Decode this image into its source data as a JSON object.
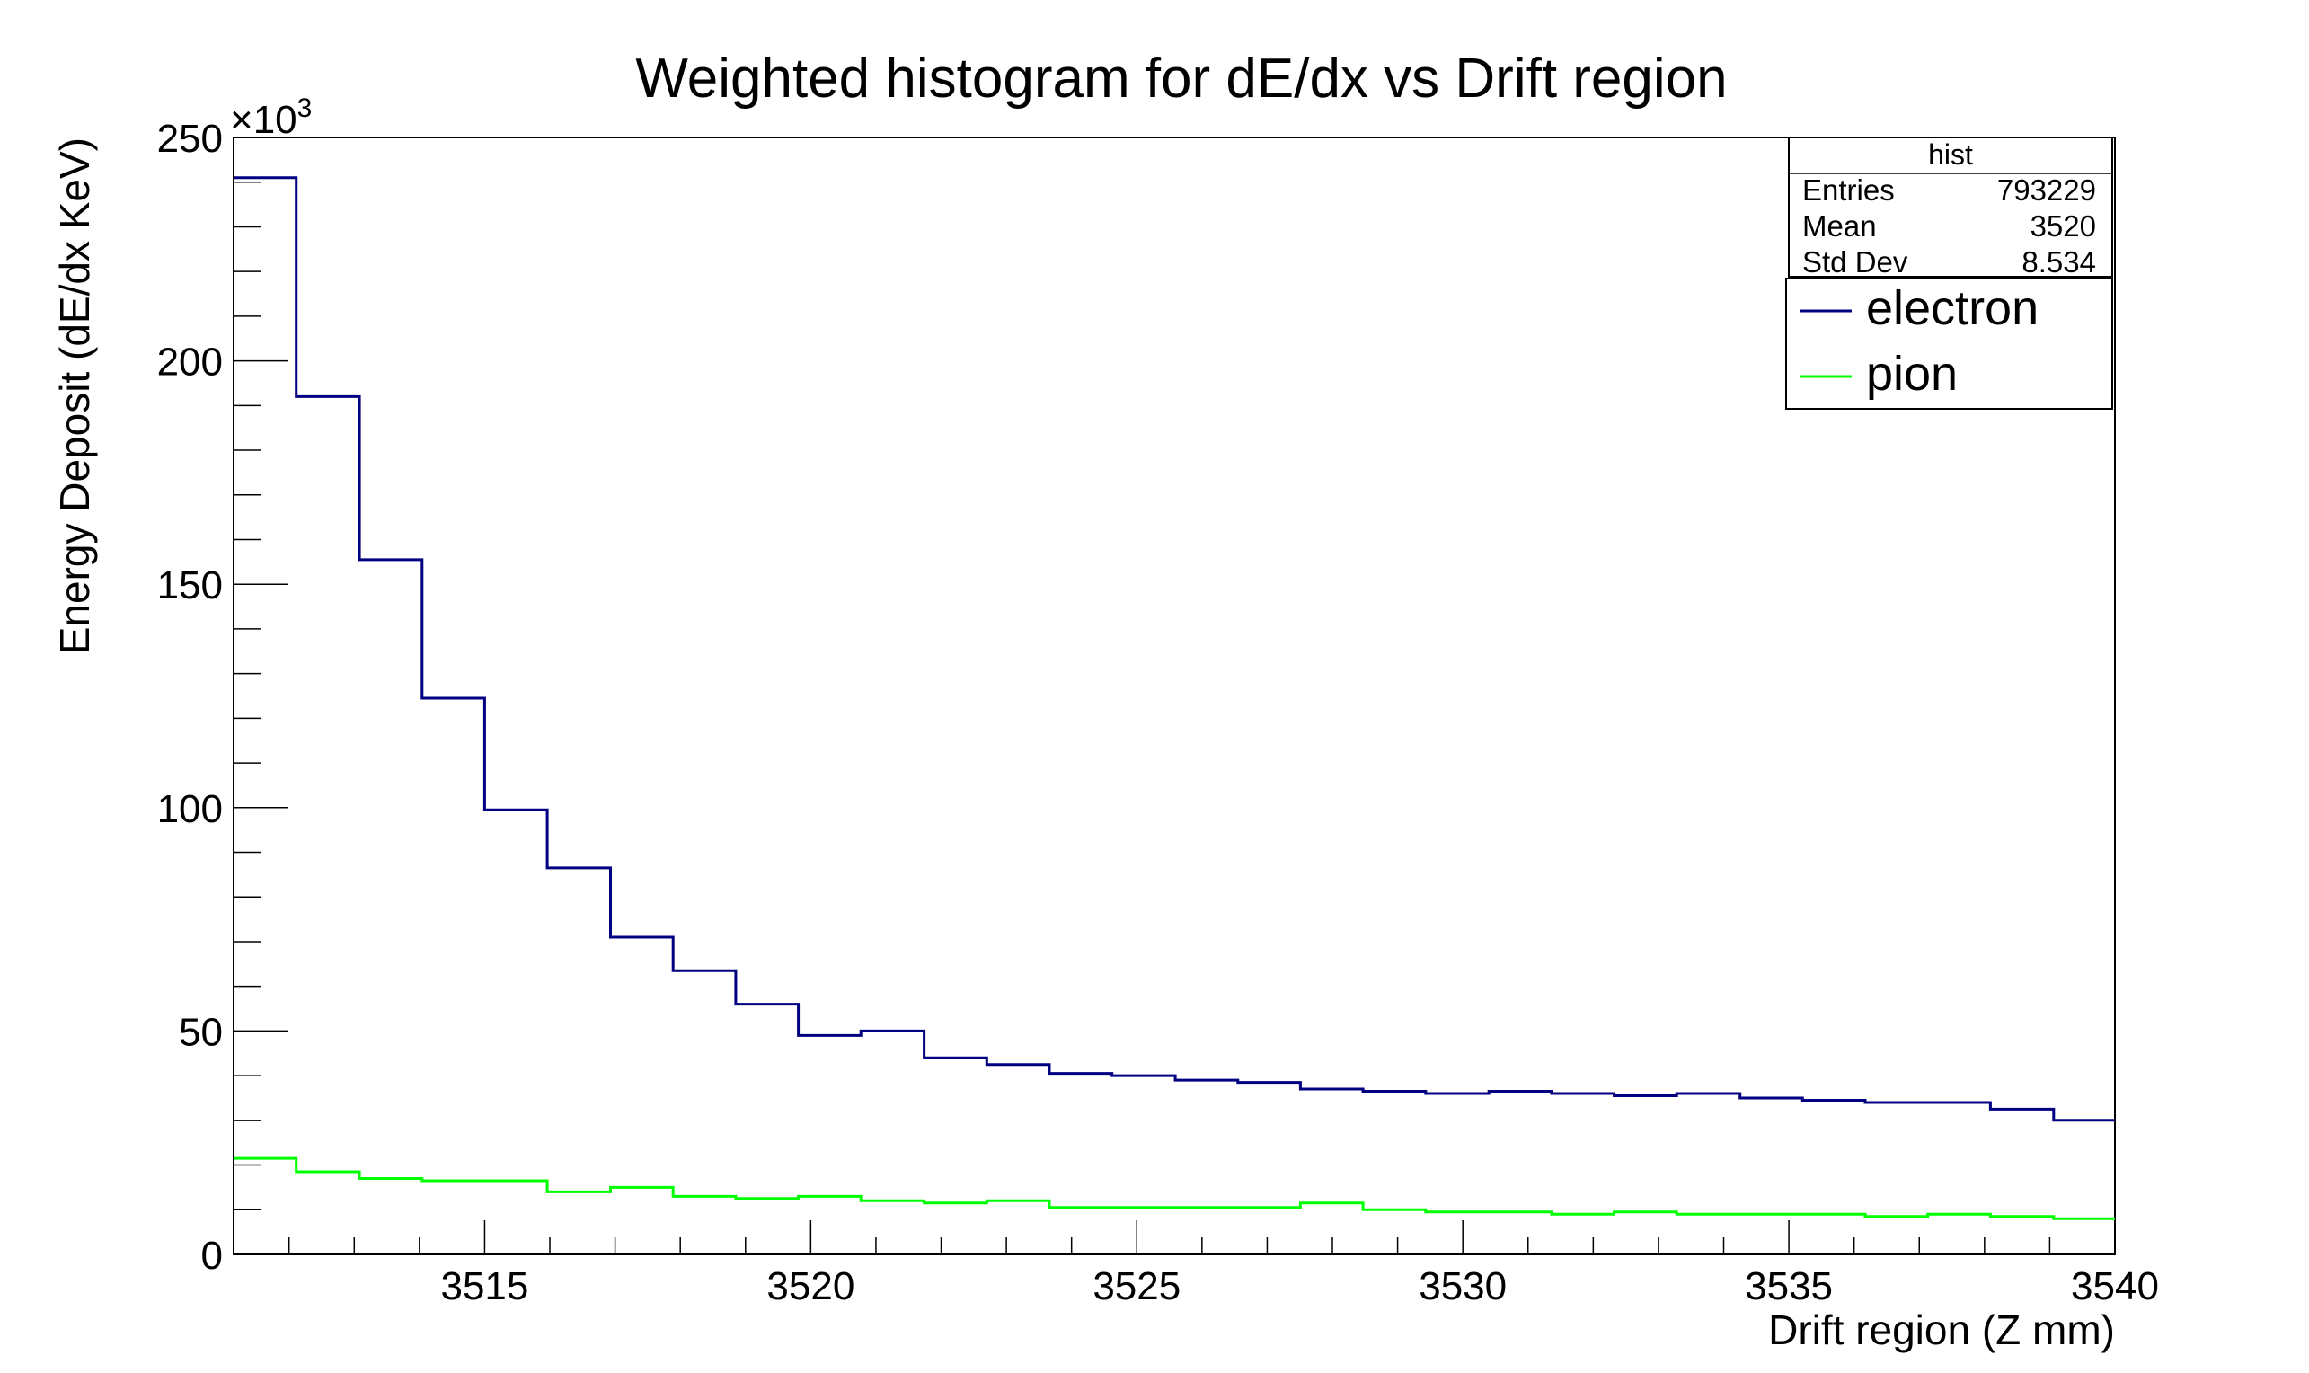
{
  "chart_data": {
    "type": "histogram",
    "title": "Weighted histogram for dE/dx vs Drift region",
    "xlabel": "Drift region (Z mm)",
    "ylabel": "Energy Deposit (dE/dx KeV)",
    "y_multiplier_label": "×10",
    "y_multiplier_exponent": "3",
    "xlim": [
      3511.15,
      3540
    ],
    "ylim": [
      0,
      250
    ],
    "x_ticks": [
      3515,
      3520,
      3525,
      3530,
      3535,
      3540
    ],
    "x_tick_labels": [
      "3515",
      "3520",
      "3525",
      "3530",
      "3535",
      "3540"
    ],
    "y_ticks": [
      0,
      50,
      100,
      150,
      200,
      250
    ],
    "y_tick_labels": [
      "0",
      "50",
      "100",
      "150",
      "200",
      "250"
    ],
    "bin_edges": [
      3511.15,
      3512.11,
      3513.08,
      3514.04,
      3515.0,
      3515.96,
      3516.93,
      3517.89,
      3518.85,
      3519.81,
      3520.77,
      3521.74,
      3522.7,
      3523.66,
      3524.62,
      3525.59,
      3526.55,
      3527.51,
      3528.47,
      3529.43,
      3530.4,
      3531.36,
      3532.32,
      3533.28,
      3534.25,
      3535.21,
      3536.17,
      3537.13,
      3538.09,
      3539.06,
      3540.0
    ],
    "series": [
      {
        "name": "electron",
        "color": "#000080",
        "values": [
          241,
          192,
          155.5,
          124.5,
          99.5,
          86.5,
          71,
          63.5,
          56,
          49,
          50,
          44,
          42.5,
          40.5,
          40,
          39,
          38.5,
          37,
          36.5,
          36,
          36.5,
          36,
          35.5,
          36,
          35,
          34.5,
          34,
          34,
          32.5,
          30
        ]
      },
      {
        "name": "pion",
        "color": "#00ff00",
        "values": [
          21.5,
          18.5,
          17,
          16.5,
          16.5,
          14,
          15,
          13,
          12.5,
          13,
          12,
          11.5,
          12,
          10.5,
          10.5,
          10.5,
          10.5,
          11.5,
          10,
          9.5,
          9.5,
          9,
          9.5,
          9,
          9,
          9,
          8.5,
          9,
          8.5,
          8
        ]
      }
    ],
    "stats_box": {
      "title": "hist",
      "rows": [
        {
          "label": "Entries",
          "value": "793229"
        },
        {
          "label": "Mean",
          "value": "3520"
        },
        {
          "label": "Std Dev",
          "value": "8.534"
        }
      ]
    },
    "legend": {
      "position": "top-right",
      "entries": [
        {
          "label": "electron",
          "color": "#000080"
        },
        {
          "label": "pion",
          "color": "#00ff00"
        }
      ]
    },
    "grid": false
  }
}
